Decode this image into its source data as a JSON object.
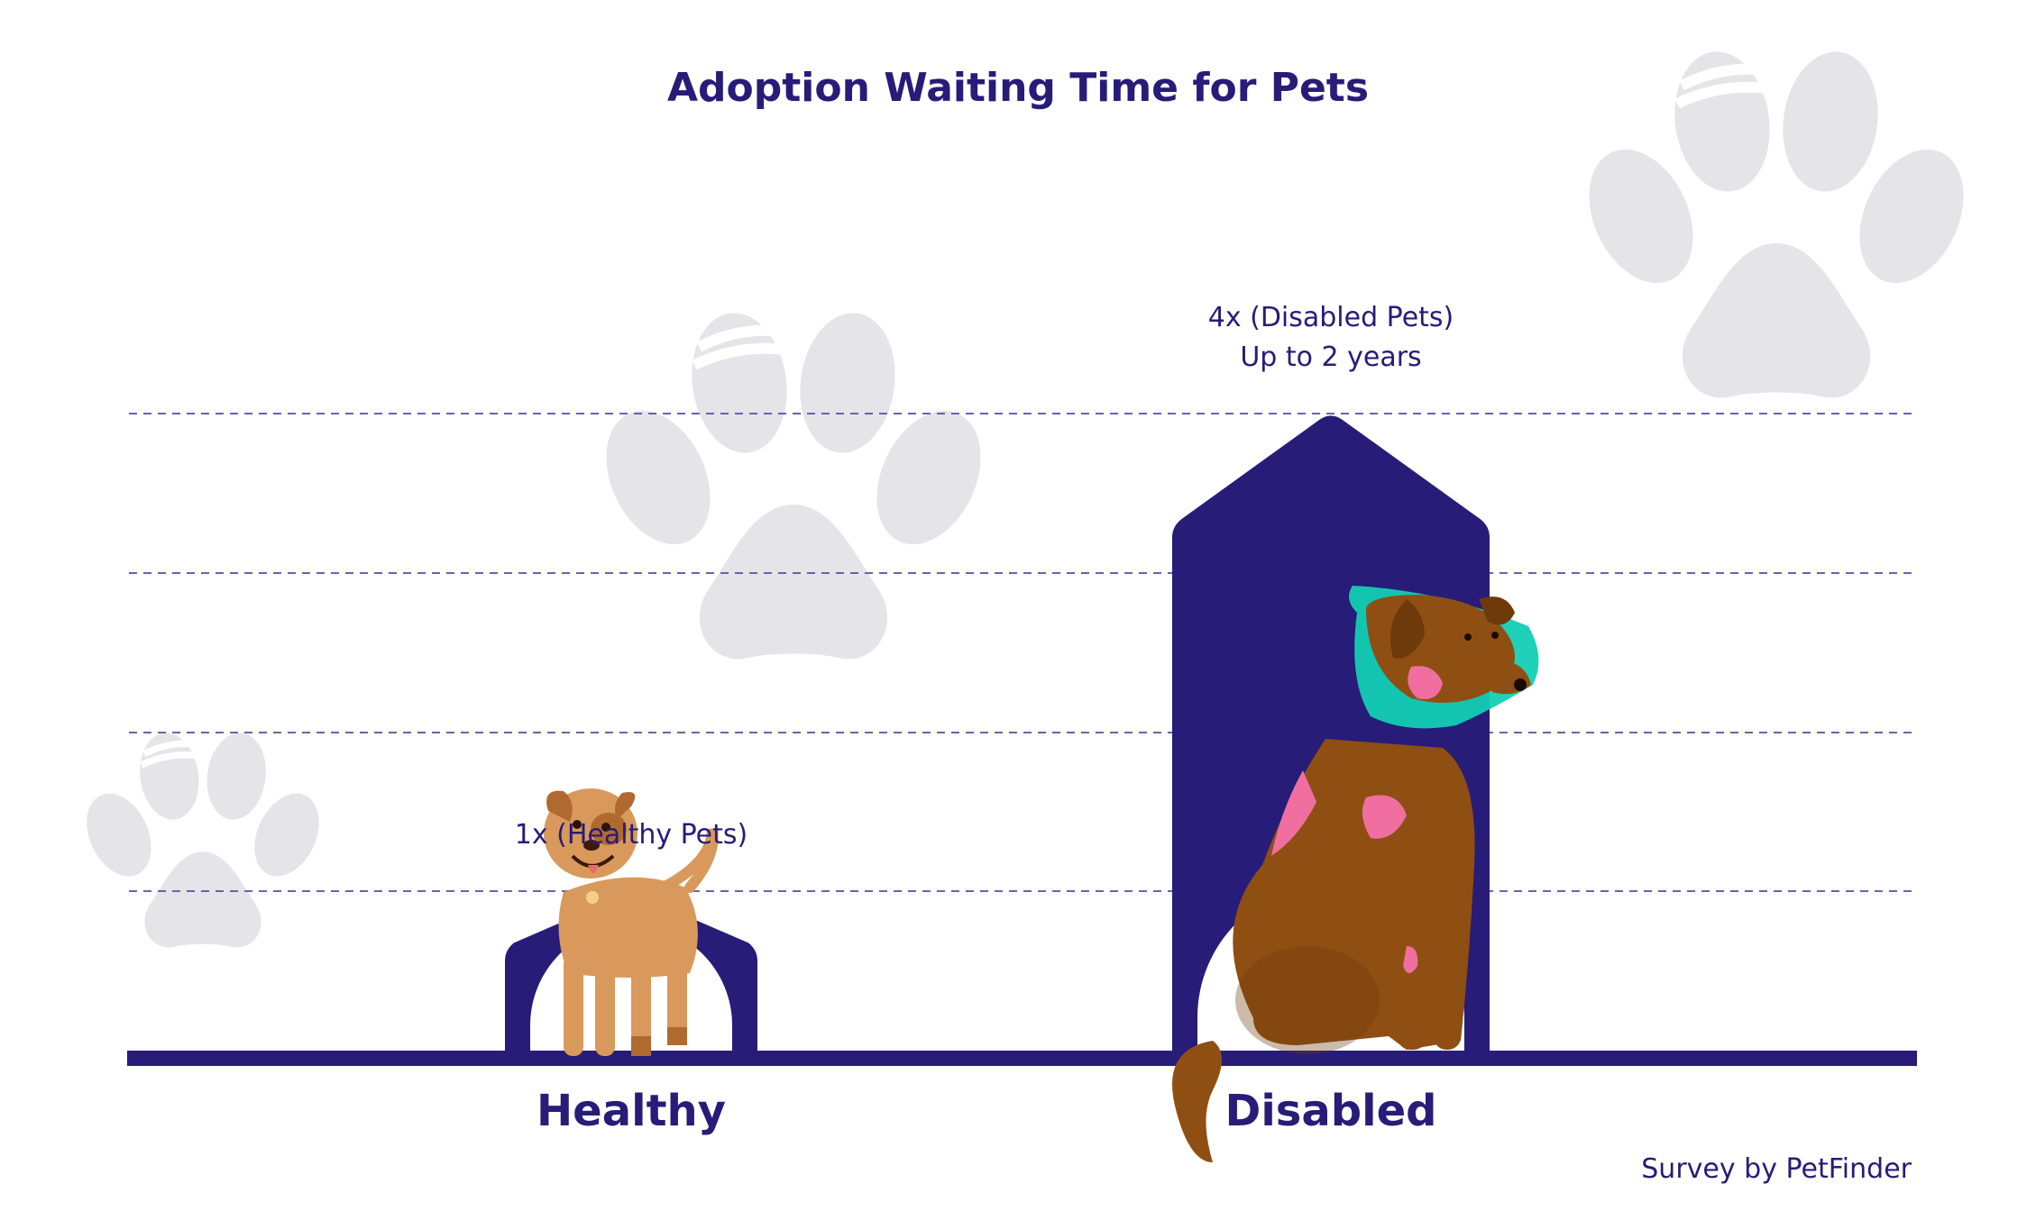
{
  "title": "Adoption Waiting Time for Pets",
  "source": "Survey by PetFinder",
  "colors": {
    "primary": "#271c78",
    "paw": "#e4e4e9",
    "background": "#ffffff",
    "healthy_dog": "#d9995c",
    "disabled_dog": "#8f4f12",
    "cone": "#12cfb4",
    "wound": "#f06fa0"
  },
  "icons": [
    "paw-print-icon",
    "dog-illustration",
    "cone-dog-illustration"
  ],
  "chart_data": {
    "type": "bar",
    "categories": [
      "Healthy",
      "Disabled"
    ],
    "values": [
      1,
      4
    ],
    "ylim": [
      0,
      4.8
    ],
    "grid": true,
    "annotations": [
      {
        "category": "Healthy",
        "lines": [
          "1x (Healthy Pets)"
        ]
      },
      {
        "category": "Disabled",
        "lines": [
          "4x (Disabled Pets)",
          "Up to 2 years"
        ]
      }
    ]
  }
}
